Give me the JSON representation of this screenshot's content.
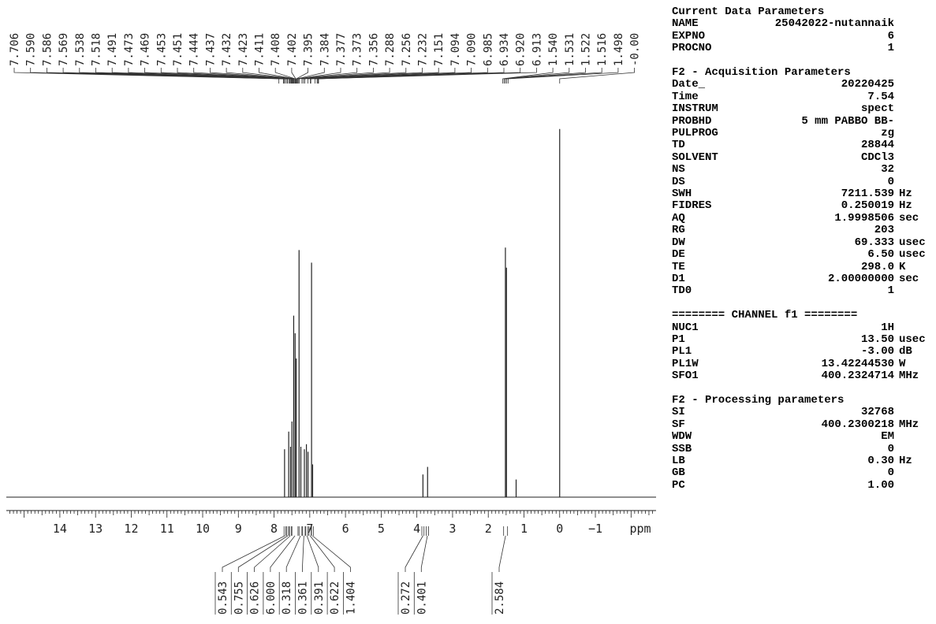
{
  "chart_data": {
    "type": "line",
    "title": "",
    "xlabel": "ppm",
    "xlim": [
      15.5,
      -2.7
    ],
    "x_reversed": true,
    "xticks": [
      14,
      13,
      12,
      11,
      10,
      9,
      8,
      7,
      6,
      5,
      4,
      3,
      2,
      1,
      0,
      -1
    ],
    "xtick_labels": [
      "14",
      "13",
      "12",
      "11",
      "10",
      "9",
      "8",
      "7",
      "6",
      "5",
      "4",
      "3",
      "2",
      "1",
      "0",
      "−1"
    ],
    "ylim": [
      0,
      1
    ],
    "peak_labels": [
      "7.706",
      "7.590",
      "7.586",
      "7.569",
      "7.538",
      "7.518",
      "7.491",
      "7.473",
      "7.469",
      "7.453",
      "7.451",
      "7.444",
      "7.437",
      "7.432",
      "7.423",
      "7.411",
      "7.408",
      "7.402",
      "7.395",
      "7.384",
      "7.377",
      "7.373",
      "7.356",
      "7.288",
      "7.256",
      "7.232",
      "7.151",
      "7.094",
      "7.090",
      "6.985",
      "6.934",
      "6.920",
      "6.913",
      "1.540",
      "1.531",
      "1.522",
      "1.516",
      "1.498",
      "-0.00"
    ],
    "peaks": [
      {
        "x": 7.706,
        "y": 0.19
      },
      {
        "x": 7.59,
        "y": 0.26
      },
      {
        "x": 7.538,
        "y": 0.2
      },
      {
        "x": 7.5,
        "y": 0.3
      },
      {
        "x": 7.45,
        "y": 0.72
      },
      {
        "x": 7.41,
        "y": 0.65
      },
      {
        "x": 7.38,
        "y": 0.55
      },
      {
        "x": 7.3,
        "y": 0.98
      },
      {
        "x": 7.25,
        "y": 0.2
      },
      {
        "x": 7.151,
        "y": 0.19
      },
      {
        "x": 7.094,
        "y": 0.21
      },
      {
        "x": 7.05,
        "y": 0.18
      },
      {
        "x": 6.95,
        "y": 0.93
      },
      {
        "x": 6.92,
        "y": 0.13
      },
      {
        "x": 3.83,
        "y": 0.09
      },
      {
        "x": 3.7,
        "y": 0.12
      },
      {
        "x": 1.52,
        "y": 0.99
      },
      {
        "x": 1.49,
        "y": 0.91
      },
      {
        "x": 1.22,
        "y": 0.07
      },
      {
        "x": 0.0,
        "y": 1.46
      }
    ],
    "integrals": [
      {
        "value": "0.543",
        "from": 7.72,
        "to": 7.67
      },
      {
        "value": "0.755",
        "from": 7.64,
        "to": 7.59
      },
      {
        "value": "0.626",
        "from": 7.57,
        "to": 7.52
      },
      {
        "value": "6.000",
        "from": 7.5,
        "to": 7.33
      },
      {
        "value": "0.318",
        "from": 7.3,
        "to": 7.22
      },
      {
        "value": "0.361",
        "from": 7.2,
        "to": 7.13
      },
      {
        "value": "0.391",
        "from": 7.11,
        "to": 7.05
      },
      {
        "value": "0.622",
        "from": 7.02,
        "to": 6.96
      },
      {
        "value": "1.404",
        "from": 6.95,
        "to": 6.9
      },
      {
        "value": "0.272",
        "from": 3.86,
        "to": 3.8
      },
      {
        "value": "0.401",
        "from": 3.74,
        "to": 3.67
      },
      {
        "value": "2.584",
        "from": 1.57,
        "to": 1.46
      }
    ]
  },
  "params": {
    "current": {
      "title": "Current Data Parameters",
      "rows": [
        {
          "k": "NAME",
          "v": "25042022-nutannaik",
          "u": ""
        },
        {
          "k": "EXPNO",
          "v": "6",
          "u": ""
        },
        {
          "k": "PROCNO",
          "v": "1",
          "u": ""
        }
      ]
    },
    "acquisition": {
      "title": "F2 - Acquisition Parameters",
      "rows": [
        {
          "k": "Date_",
          "v": "20220425",
          "u": ""
        },
        {
          "k": "Time",
          "v": "7.54",
          "u": ""
        },
        {
          "k": "INSTRUM",
          "v": "spect",
          "u": ""
        },
        {
          "k": "PROBHD",
          "v": "5 mm PABBO BB-",
          "u": ""
        },
        {
          "k": "PULPROG",
          "v": "zg",
          "u": ""
        },
        {
          "k": "TD",
          "v": "28844",
          "u": ""
        },
        {
          "k": "SOLVENT",
          "v": "CDCl3",
          "u": ""
        },
        {
          "k": "NS",
          "v": "32",
          "u": ""
        },
        {
          "k": "DS",
          "v": "0",
          "u": ""
        },
        {
          "k": "SWH",
          "v": "7211.539",
          "u": "Hz"
        },
        {
          "k": "FIDRES",
          "v": "0.250019",
          "u": "Hz"
        },
        {
          "k": "AQ",
          "v": "1.9998506",
          "u": "sec"
        },
        {
          "k": "RG",
          "v": "203",
          "u": ""
        },
        {
          "k": "DW",
          "v": "69.333",
          "u": "usec"
        },
        {
          "k": "DE",
          "v": "6.50",
          "u": "usec"
        },
        {
          "k": "TE",
          "v": "298.0",
          "u": "K"
        },
        {
          "k": "D1",
          "v": "2.00000000",
          "u": "sec"
        },
        {
          "k": "TD0",
          "v": "1",
          "u": ""
        }
      ]
    },
    "channel": {
      "title": "======== CHANNEL f1 ========",
      "rows": [
        {
          "k": "NUC1",
          "v": "1H",
          "u": ""
        },
        {
          "k": "P1",
          "v": "13.50",
          "u": "usec"
        },
        {
          "k": "PL1",
          "v": "-3.00",
          "u": "dB"
        },
        {
          "k": "PL1W",
          "v": "13.42244530",
          "u": "W"
        },
        {
          "k": "SFO1",
          "v": "400.2324714",
          "u": "MHz"
        }
      ]
    },
    "processing": {
      "title": "F2 - Processing parameters",
      "rows": [
        {
          "k": "SI",
          "v": "32768",
          "u": ""
        },
        {
          "k": "SF",
          "v": "400.2300218",
          "u": "MHz"
        },
        {
          "k": "WDW",
          "v": "EM",
          "u": ""
        },
        {
          "k": "SSB",
          "v": "0",
          "u": ""
        },
        {
          "k": "LB",
          "v": "0.30",
          "u": "Hz"
        },
        {
          "k": "GB",
          "v": "0",
          "u": ""
        },
        {
          "k": "PC",
          "v": "1.00",
          "u": ""
        }
      ]
    }
  }
}
